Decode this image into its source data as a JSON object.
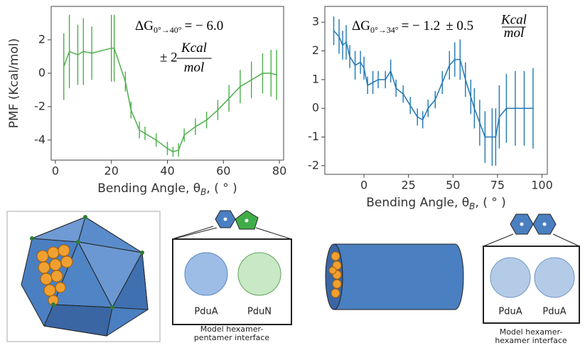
{
  "chart_data": [
    {
      "type": "line",
      "color": "#4daf4a",
      "ylabel": "PMF (Kcal/mol)",
      "xlabel": [
        "Bending Angle, θ",
        "B",
        ", ( ° )"
      ],
      "annotation": {
        "delta": "ΔG",
        "sub": "0°→40°",
        "value": "= − 6.0",
        "pm": "± 2",
        "num": "Kcal",
        "den": "mol"
      },
      "x": [
        3,
        5,
        8,
        10,
        13,
        20,
        21,
        25,
        27,
        30,
        32,
        36,
        40,
        42,
        44,
        46,
        50,
        54,
        58,
        62,
        66,
        70,
        74,
        77,
        79
      ],
      "values": [
        0.4,
        1.3,
        1.1,
        1.3,
        1.2,
        1.5,
        1.5,
        -0.5,
        -2.2,
        -3.4,
        -3.6,
        -4.0,
        -4.5,
        -4.7,
        -4.6,
        -3.7,
        -3.2,
        -2.8,
        -2.2,
        -1.5,
        -0.8,
        -0.4,
        0.0,
        0.0,
        -0.1
      ],
      "errors": [
        2.0,
        2.2,
        1.8,
        2.0,
        1.6,
        2.0,
        2.0,
        0.6,
        0.5,
        0.5,
        0.4,
        0.4,
        0.4,
        0.3,
        0.4,
        0.4,
        0.5,
        0.5,
        0.6,
        0.8,
        1.0,
        1.1,
        1.2,
        1.4,
        1.5
      ],
      "xlim": [
        -1.5,
        81.5
      ],
      "xticks": [
        0,
        20,
        40,
        60,
        80
      ],
      "ylim": [
        -5.2,
        4.0
      ],
      "yticks": [
        -4,
        -2,
        0,
        2
      ]
    },
    {
      "type": "line",
      "color": "#1f77b4",
      "xlabel": [
        "Bending Angle, θ",
        "B",
        ", ( ° )"
      ],
      "annotation": {
        "delta": "ΔG",
        "sub": "0°→34°",
        "value": "= − 1.2",
        "pm": "± 0.5",
        "num": "Kcal",
        "den": "mol"
      },
      "x": [
        -17,
        -14,
        -12,
        -10,
        -8,
        -5,
        -2,
        0,
        2,
        5,
        8,
        12,
        15,
        18,
        22,
        26,
        30,
        33,
        36,
        40,
        44,
        48,
        51,
        54,
        57,
        60,
        62,
        65,
        68,
        72,
        74,
        76,
        80,
        85,
        90,
        95
      ],
      "values": [
        2.7,
        2.5,
        2.2,
        2.3,
        1.8,
        1.5,
        1.6,
        1.4,
        0.8,
        0.9,
        1.0,
        1.0,
        1.3,
        0.7,
        0.5,
        0.1,
        -0.3,
        -0.4,
        0.0,
        0.3,
        0.9,
        1.5,
        1.7,
        1.7,
        1.0,
        0.4,
        0.0,
        -0.5,
        -1.0,
        -1.0,
        -1.0,
        -0.3,
        0.0,
        0.0,
        0.0,
        0.0
      ],
      "errors": [
        0.5,
        0.6,
        0.5,
        0.6,
        0.4,
        0.5,
        0.4,
        0.4,
        0.3,
        0.4,
        0.3,
        0.3,
        0.4,
        0.3,
        0.3,
        0.3,
        0.3,
        0.3,
        0.3,
        0.3,
        0.4,
        0.5,
        0.6,
        0.7,
        0.6,
        0.6,
        0.7,
        0.8,
        0.9,
        1.0,
        1.0,
        1.1,
        1.2,
        1.3,
        1.3,
        1.4
      ],
      "xlim": [
        -22,
        103
      ],
      "xticks": [
        0,
        25,
        50,
        75,
        100
      ],
      "ylim": [
        -2.3,
        3.55
      ],
      "yticks": [
        -2,
        -1,
        0,
        1,
        2,
        3
      ]
    }
  ],
  "panels": [
    {
      "labels": [
        "PduA",
        "PduN"
      ],
      "caption": [
        "Model hexamer-",
        "pentamer interface"
      ]
    },
    {
      "labels": [
        "PduA",
        "PduA"
      ],
      "caption": [
        "Model hexamer-",
        "hexamer interface"
      ]
    }
  ]
}
